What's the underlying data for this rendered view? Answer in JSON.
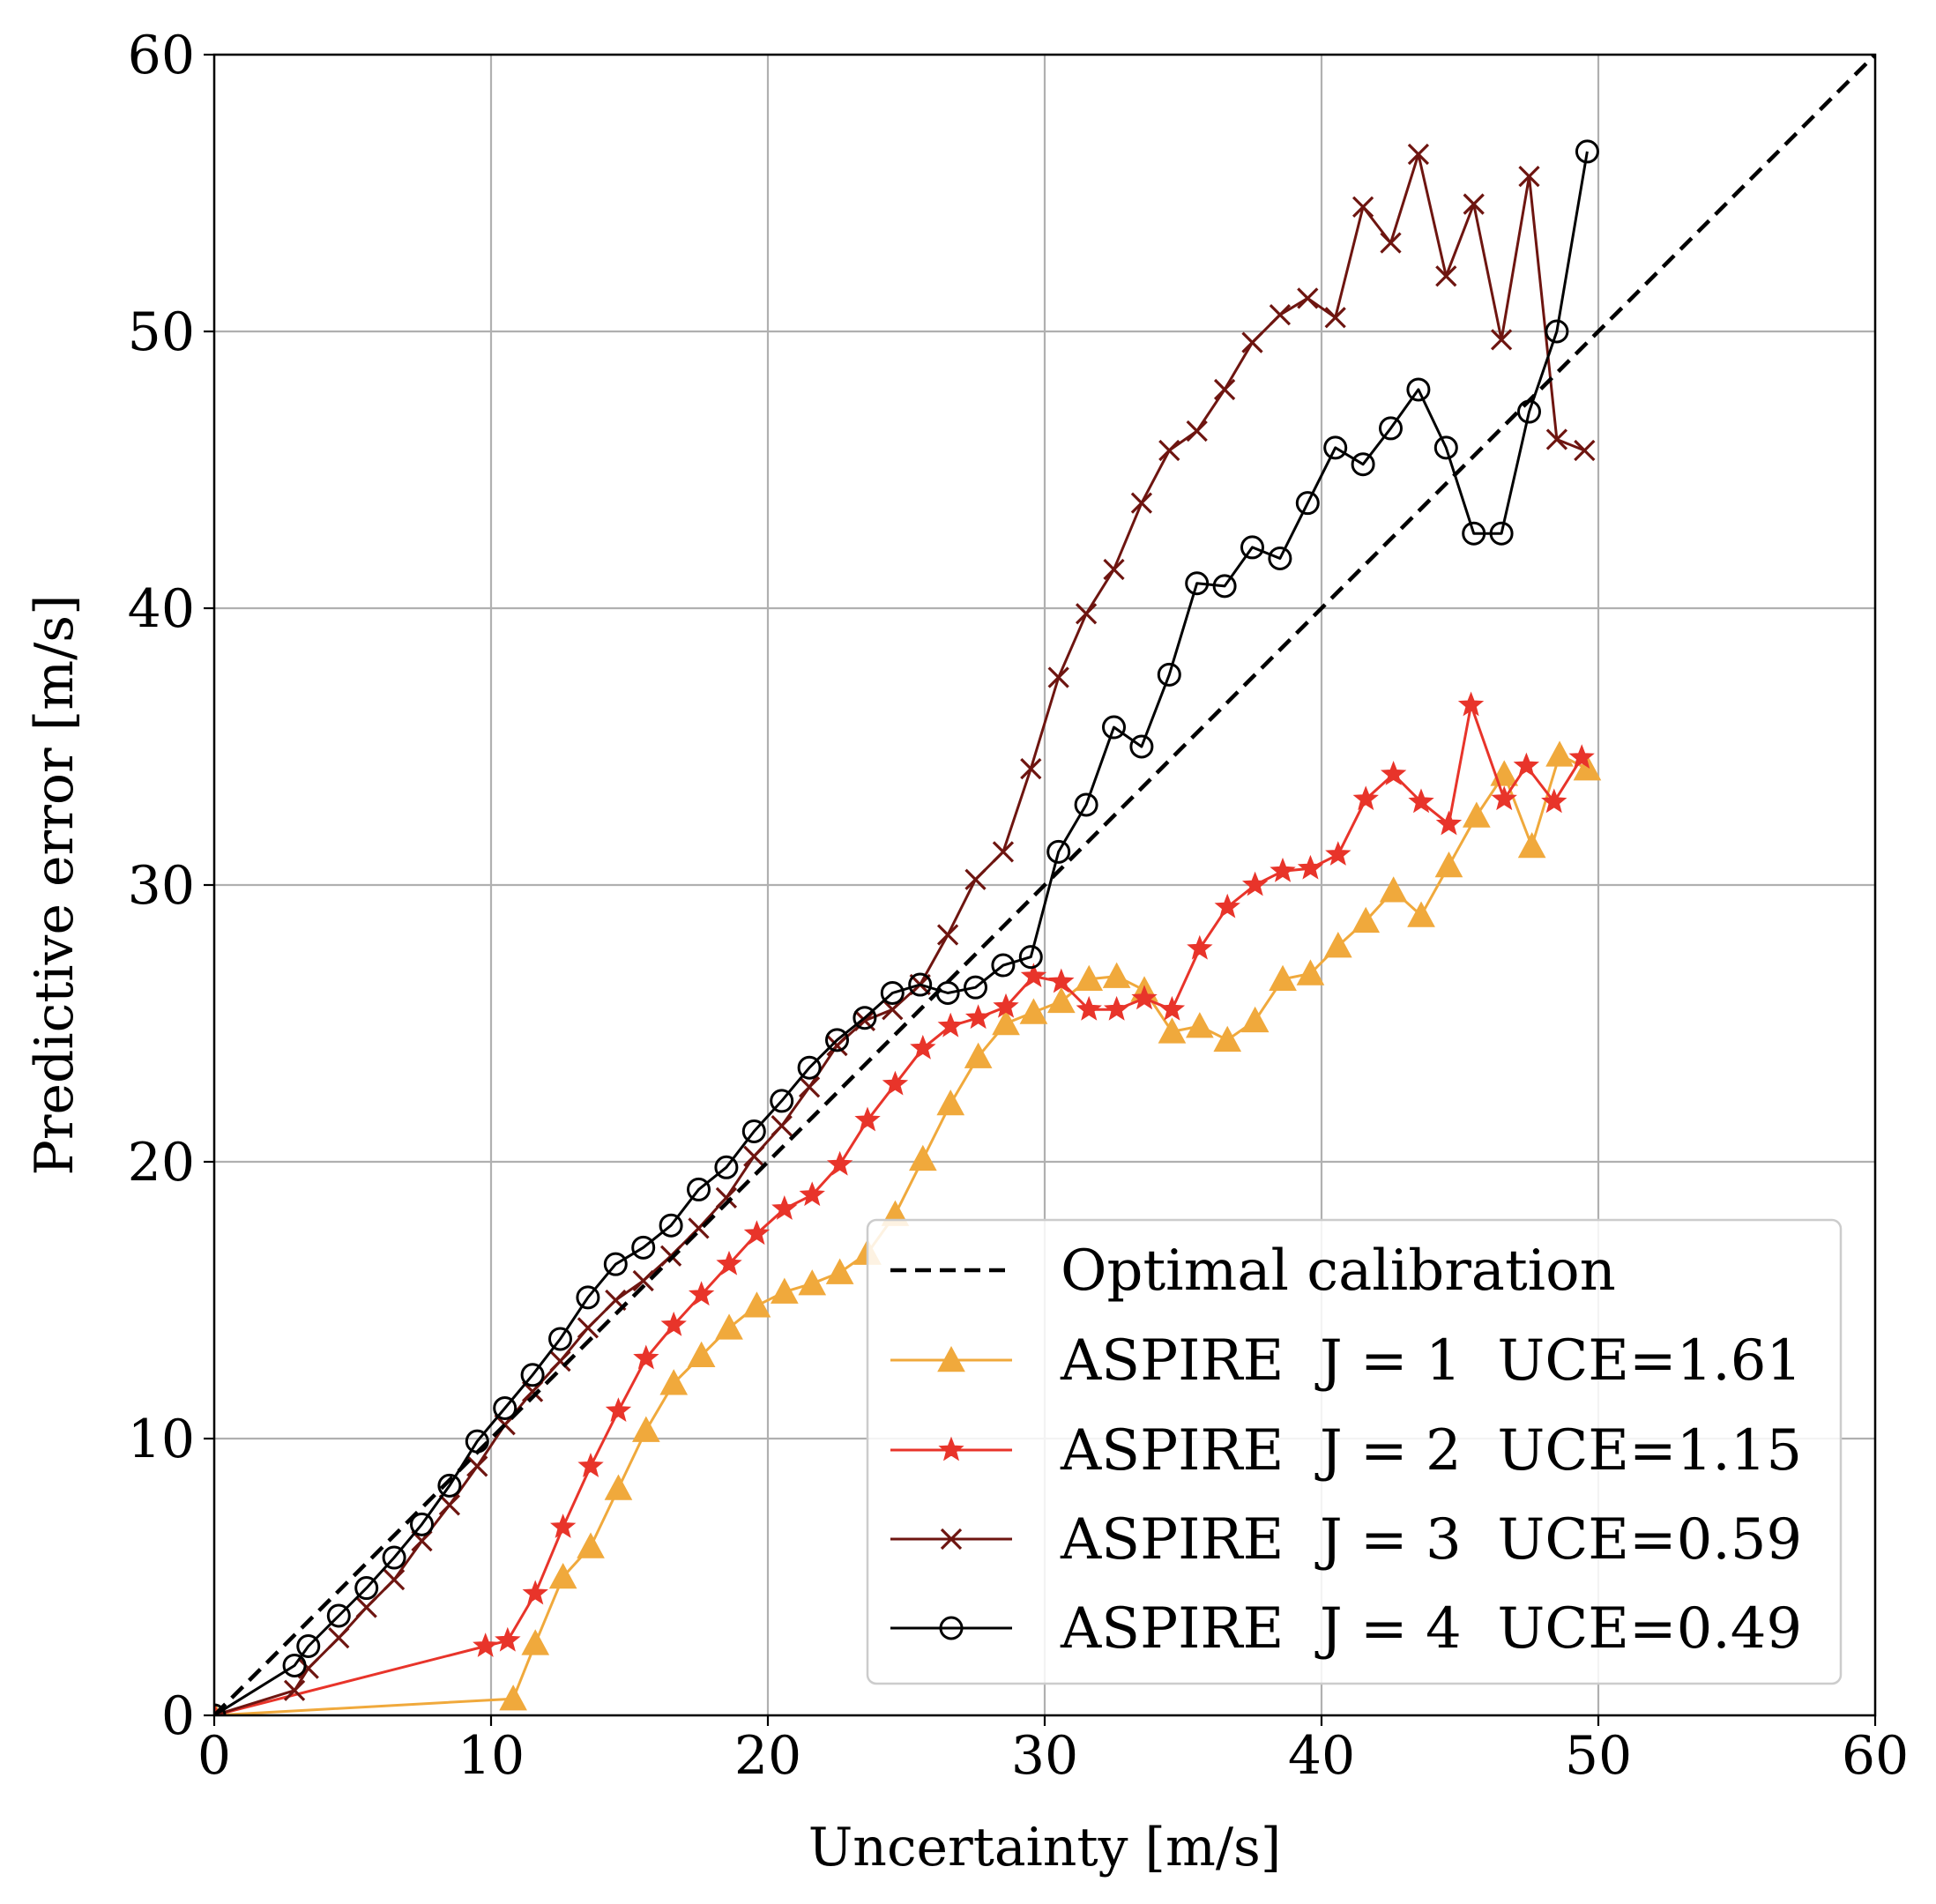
{
  "chart_data": {
    "type": "line",
    "title": "",
    "xlabel": "Uncertainty [m/s]",
    "ylabel": "Predictive error [m/s]",
    "xlim": [
      0,
      60
    ],
    "ylim": [
      0,
      60
    ],
    "xticks": [
      "0",
      "10",
      "20",
      "30",
      "40",
      "50",
      "60"
    ],
    "yticks": [
      "0",
      "10",
      "20",
      "30",
      "40",
      "50",
      "60"
    ],
    "grid": true,
    "legend_position": "lower-right",
    "colors": {
      "optimal": "#000000",
      "j1": "#f0a93c",
      "j2": "#e8342a",
      "j3": "#6e1510",
      "j4": "#000000"
    },
    "series": [
      {
        "name": "Optimal calibration",
        "style": "dashed",
        "marker": "none",
        "x": [
          0,
          60
        ],
        "y": [
          0,
          60
        ]
      },
      {
        "name": "ASPIRE  J = 1  UCE=1.61",
        "style": "solid",
        "marker": "triangle",
        "x": [
          0,
          10.8,
          11.6,
          12.6,
          13.6,
          14.6,
          15.6,
          16.6,
          17.6,
          18.6,
          19.6,
          20.6,
          21.6,
          22.6,
          23.6,
          24.6,
          25.6,
          26.6,
          27.6,
          28.6,
          29.6,
          30.6,
          31.6,
          32.6,
          33.6,
          34.6,
          35.6,
          36.6,
          37.6,
          38.6,
          39.6,
          40.6,
          41.6,
          42.6,
          43.6,
          44.6,
          45.6,
          46.6,
          47.6,
          48.6,
          49.6
        ],
        "y": [
          0,
          0.6,
          2.6,
          5.0,
          6.1,
          8.2,
          10.3,
          12.0,
          13.0,
          14.0,
          14.8,
          15.3,
          15.6,
          16.0,
          16.7,
          18.1,
          20.1,
          22.1,
          23.8,
          25.0,
          25.4,
          25.8,
          26.6,
          26.7,
          26.2,
          24.7,
          24.9,
          24.4,
          25.1,
          26.6,
          26.8,
          27.8,
          28.7,
          29.8,
          28.9,
          30.7,
          32.5,
          34.0,
          31.4,
          34.7,
          34.2
        ]
      },
      {
        "name": "ASPIRE  J = 2  UCE=1.15",
        "style": "solid",
        "marker": "star",
        "x": [
          0,
          9.8,
          10.6,
          11.6,
          12.6,
          13.6,
          14.6,
          15.6,
          16.6,
          17.6,
          18.6,
          19.6,
          20.6,
          21.6,
          22.6,
          23.6,
          24.6,
          25.6,
          26.6,
          27.6,
          28.6,
          29.6,
          30.6,
          31.6,
          32.6,
          33.6,
          34.6,
          35.6,
          36.6,
          37.6,
          38.6,
          39.6,
          40.6,
          41.6,
          42.6,
          43.6,
          44.6,
          45.4,
          46.6,
          47.4,
          48.4,
          49.4
        ],
        "y": [
          0,
          2.5,
          2.7,
          4.4,
          6.8,
          9.0,
          11.0,
          12.9,
          14.1,
          15.2,
          16.3,
          17.4,
          18.3,
          18.8,
          19.9,
          21.5,
          22.8,
          24.1,
          24.9,
          25.2,
          25.6,
          26.7,
          26.5,
          25.5,
          25.5,
          25.9,
          25.5,
          27.7,
          29.2,
          30.0,
          30.5,
          30.6,
          31.1,
          33.1,
          34.0,
          33.0,
          32.2,
          36.5,
          33.1,
          34.3,
          33.0,
          34.6
        ]
      },
      {
        "name": "ASPIRE  J = 3  UCE=0.59",
        "style": "solid",
        "marker": "x",
        "x": [
          0,
          2.9,
          3.4,
          4.5,
          5.5,
          6.5,
          7.5,
          8.5,
          9.5,
          10.5,
          11.5,
          12.5,
          13.5,
          14.5,
          15.5,
          16.5,
          17.5,
          18.5,
          19.5,
          20.5,
          21.5,
          22.5,
          23.5,
          24.5,
          25.5,
          26.5,
          27.5,
          28.5,
          29.5,
          30.5,
          31.5,
          32.5,
          33.5,
          34.5,
          35.5,
          36.5,
          37.5,
          38.5,
          39.5,
          40.5,
          41.5,
          42.5,
          43.5,
          44.5,
          45.5,
          46.5,
          47.5,
          48.5,
          49.5
        ],
        "y": [
          0,
          0.9,
          1.7,
          2.8,
          3.9,
          4.9,
          6.3,
          7.6,
          9.0,
          10.5,
          11.7,
          12.8,
          14.0,
          15.0,
          15.7,
          16.6,
          17.6,
          18.7,
          20.2,
          21.3,
          22.7,
          24.2,
          25.1,
          25.5,
          26.4,
          28.2,
          30.2,
          31.2,
          34.2,
          37.5,
          39.8,
          41.4,
          43.8,
          45.7,
          46.4,
          47.9,
          49.6,
          50.6,
          51.2,
          50.5,
          54.5,
          53.2,
          56.4,
          52.0,
          54.6,
          49.7,
          55.6,
          46.1,
          45.7
        ]
      },
      {
        "name": "ASPIRE  J = 4  UCE=0.49",
        "style": "solid",
        "marker": "circle",
        "x": [
          0,
          2.9,
          3.4,
          4.5,
          5.5,
          6.5,
          7.5,
          8.5,
          9.5,
          10.5,
          11.5,
          12.5,
          13.5,
          14.5,
          15.5,
          16.5,
          17.5,
          18.5,
          19.5,
          20.5,
          21.5,
          22.5,
          23.5,
          24.5,
          25.5,
          26.5,
          27.5,
          28.5,
          29.5,
          30.5,
          31.5,
          32.5,
          33.5,
          34.5,
          35.5,
          36.5,
          37.5,
          38.5,
          39.5,
          40.5,
          41.5,
          42.5,
          43.5,
          44.5,
          45.5,
          46.5,
          47.5,
          48.5,
          49.6
        ],
        "y": [
          0,
          1.8,
          2.5,
          3.6,
          4.6,
          5.7,
          6.9,
          8.3,
          9.9,
          11.1,
          12.3,
          13.6,
          15.1,
          16.3,
          16.9,
          17.7,
          19.0,
          19.8,
          21.1,
          22.2,
          23.4,
          24.4,
          25.2,
          26.1,
          26.4,
          26.1,
          26.3,
          27.1,
          27.4,
          31.2,
          32.9,
          35.7,
          35.0,
          37.6,
          40.9,
          40.8,
          42.2,
          41.8,
          43.8,
          45.8,
          45.2,
          46.5,
          47.9,
          45.8,
          42.7,
          42.7,
          47.1,
          50.0,
          56.5
        ]
      }
    ]
  }
}
